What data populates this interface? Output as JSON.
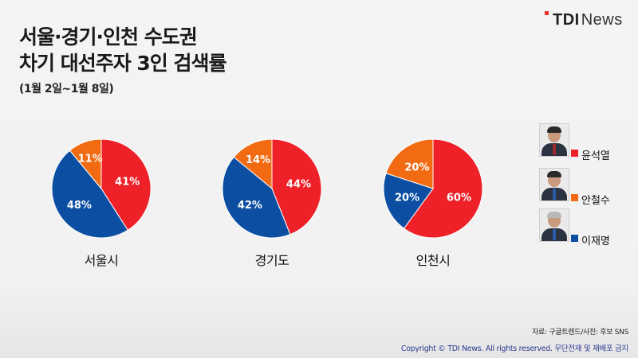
{
  "header": {
    "title_line1": "서울·경기·인천 수도권",
    "title_line2": "차기 대선주자 3인 검색률",
    "subtitle": "(1월 2일~1월 8일)",
    "logo_prefix": "TDI",
    "logo_suffix": "News"
  },
  "colors": {
    "윤석열": "#ee2129",
    "안철수": "#f26b12",
    "이재명": "#0b4ea2"
  },
  "legend": [
    {
      "name": "윤석열",
      "icon": "photo-yoon",
      "color": "#ee2129"
    },
    {
      "name": "안철수",
      "icon": "photo-ahn",
      "color": "#f26b12"
    },
    {
      "name": "이재명",
      "icon": "photo-lee",
      "color": "#0b4ea2"
    }
  ],
  "chart_data": [
    {
      "type": "pie",
      "title": "서울시",
      "labels": [
        "윤석열",
        "이재명",
        "안철수"
      ],
      "values": [
        41,
        48,
        11
      ]
    },
    {
      "type": "pie",
      "title": "경기도",
      "labels": [
        "윤석열",
        "이재명",
        "안철수"
      ],
      "values": [
        44,
        42,
        14
      ]
    },
    {
      "type": "pie",
      "title": "인천시",
      "labels": [
        "윤석열",
        "이재명",
        "안철수"
      ],
      "values": [
        60,
        20,
        20
      ]
    }
  ],
  "footer": {
    "source": "자료: 구글트렌드/사진: 후보 SNS",
    "copyright": "Copyright © TDI News. All rights reserved. 무단전재 및 재배포 금지"
  }
}
